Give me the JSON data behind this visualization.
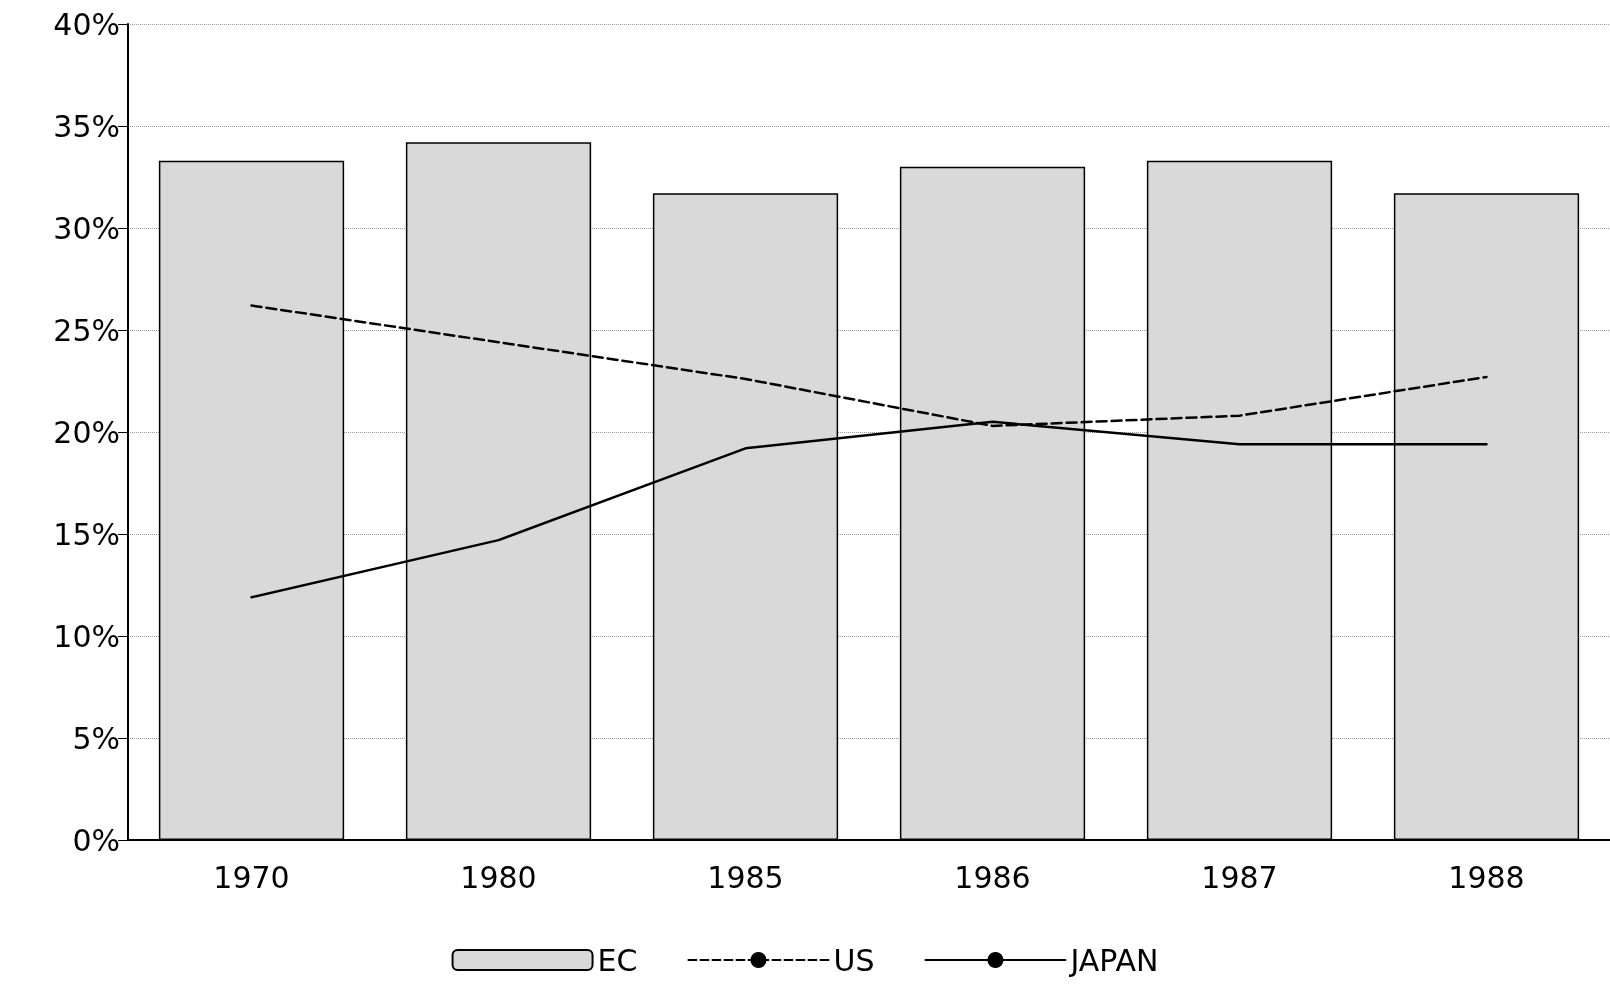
{
  "chart_data": {
    "type": "bar",
    "categories": [
      "1970",
      "1980",
      "1985",
      "1986",
      "1987",
      "1988"
    ],
    "series": [
      {
        "name": "EC",
        "color": "#d9d9d9",
        "values": [
          33.3,
          34.2,
          31.7,
          33.0,
          33.3,
          31.7
        ]
      },
      {
        "name": "US",
        "type": "line",
        "color": "#000000",
        "line_style": "dashed",
        "values": [
          26.2,
          24.4,
          22.6,
          20.3,
          20.8,
          22.7
        ]
      },
      {
        "name": "JAPAN",
        "type": "line",
        "color": "#000000",
        "line_style": "solid",
        "values": [
          11.9,
          14.7,
          19.2,
          20.5,
          19.4,
          19.4
        ]
      }
    ],
    "ylim": [
      0,
      40
    ],
    "yticks": [
      {
        "value": 0,
        "label": "0%"
      },
      {
        "value": 5,
        "label": "5%"
      },
      {
        "value": 10,
        "label": "10%"
      },
      {
        "value": 15,
        "label": "15%"
      },
      {
        "value": 20,
        "label": "20%"
      },
      {
        "value": 25,
        "label": "25%"
      },
      {
        "value": 30,
        "label": "30%"
      },
      {
        "value": 35,
        "label": "35%"
      },
      {
        "value": 40,
        "label": "40%"
      }
    ],
    "grid": "y",
    "legend": "bottom",
    "marker": "none"
  }
}
